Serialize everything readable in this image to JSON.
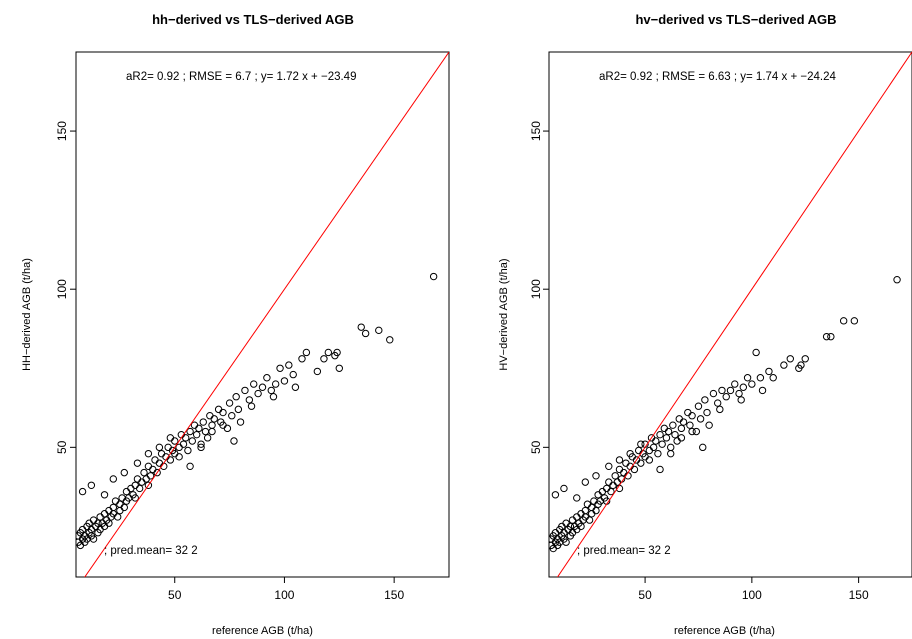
{
  "chart_data": [
    {
      "type": "scatter",
      "title": "hh−derived vs TLS−derived AGB",
      "xlabel": "reference AGB (t/ha)",
      "ylabel": "HH−derived AGB (t/ha)",
      "xlim": [
        5,
        175
      ],
      "ylim": [
        9,
        175
      ],
      "xticks": [
        50,
        100,
        150
      ],
      "yticks": [
        50,
        100,
        150
      ],
      "reference_line": {
        "intercept": 0,
        "slope": 1,
        "color": "#ff0000"
      },
      "point_color": "#000000",
      "stats_text": "aR2= 0.92 ;  RMSE =  6.7 ;  y= 1.72 x + −23.49",
      "pred_text": "pred.mean= 32 2",
      "grid": false,
      "series": [
        {
          "x": [
            6,
            6,
            7,
            7,
            8,
            8,
            9,
            9,
            10,
            10,
            11,
            11,
            12,
            12,
            13,
            13,
            14,
            15,
            15,
            16,
            16,
            17,
            18,
            18,
            19,
            20,
            20,
            21,
            22,
            22,
            23,
            24,
            25,
            25,
            26,
            27,
            28,
            28,
            29,
            30,
            31,
            32,
            32,
            33,
            34,
            35,
            36,
            37,
            38,
            38,
            39,
            40,
            41,
            42,
            43,
            44,
            45,
            46,
            47,
            48,
            49,
            50,
            50,
            52,
            53,
            54,
            55,
            56,
            57,
            58,
            59,
            60,
            61,
            62,
            63,
            64,
            65,
            66,
            67,
            68,
            70,
            71,
            72,
            74,
            75,
            76,
            78,
            79,
            80,
            82,
            84,
            85,
            86,
            88,
            90,
            92,
            94,
            95,
            96,
            98,
            100,
            102,
            104,
            105,
            108,
            110,
            115,
            118,
            120,
            123,
            124,
            125,
            135,
            137,
            143,
            148,
            168,
            8,
            12,
            18,
            22,
            27,
            33,
            38,
            43,
            48,
            52,
            57,
            62,
            67,
            72,
            77
          ],
          "y": [
            20,
            22,
            19,
            23,
            21,
            24,
            20,
            22,
            25,
            21,
            23,
            26,
            22,
            24,
            21,
            27,
            25,
            23,
            26,
            24,
            28,
            26,
            25,
            29,
            27,
            30,
            26,
            28,
            31,
            29,
            33,
            28,
            32,
            30,
            34,
            31,
            33,
            36,
            34,
            37,
            35,
            38,
            34,
            40,
            37,
            39,
            42,
            40,
            38,
            44,
            41,
            43,
            46,
            42,
            45,
            48,
            44,
            47,
            50,
            46,
            49,
            52,
            48,
            50,
            54,
            51,
            53,
            49,
            55,
            52,
            57,
            54,
            56,
            51,
            58,
            55,
            53,
            60,
            57,
            59,
            62,
            58,
            61,
            56,
            64,
            60,
            66,
            62,
            58,
            68,
            65,
            63,
            70,
            67,
            69,
            72,
            68,
            66,
            70,
            75,
            71,
            76,
            73,
            69,
            78,
            80,
            74,
            78,
            80,
            79,
            80,
            75,
            88,
            86,
            87,
            84,
            104,
            36,
            38,
            35,
            40,
            42,
            45,
            48,
            50,
            53,
            47,
            44,
            50,
            55,
            57,
            52
          ]
        }
      ]
    },
    {
      "type": "scatter",
      "title": "hv−derived vs TLS−derived AGB",
      "xlabel": "reference AGB (t/ha)",
      "ylabel": "HV−derived AGB (t/ha)",
      "xlim": [
        5,
        175
      ],
      "ylim": [
        9,
        175
      ],
      "xticks": [
        50,
        100,
        150
      ],
      "yticks": [
        50,
        100,
        150
      ],
      "reference_line": {
        "intercept": 0,
        "slope": 1,
        "color": "#ff0000"
      },
      "point_color": "#000000",
      "stats_text": "aR2= 0.92 ;  RMSE =  6.63 ;  y= 1.74 x + −24.24",
      "pred_text": "pred.mean= 32 2",
      "grid": false,
      "series": [
        {
          "x": [
            6,
            6,
            7,
            7,
            8,
            8,
            9,
            9,
            10,
            10,
            11,
            11,
            12,
            12,
            13,
            13,
            14,
            15,
            15,
            16,
            16,
            17,
            18,
            18,
            19,
            20,
            20,
            21,
            22,
            22,
            23,
            24,
            25,
            25,
            26,
            27,
            28,
            28,
            29,
            30,
            31,
            32,
            32,
            33,
            34,
            35,
            36,
            37,
            38,
            38,
            39,
            40,
            41,
            42,
            43,
            44,
            45,
            46,
            47,
            48,
            49,
            50,
            50,
            52,
            53,
            54,
            55,
            56,
            57,
            58,
            59,
            60,
            61,
            62,
            63,
            64,
            65,
            66,
            67,
            68,
            70,
            71,
            72,
            74,
            75,
            76,
            78,
            79,
            80,
            82,
            84,
            85,
            86,
            88,
            90,
            92,
            94,
            95,
            96,
            98,
            100,
            102,
            104,
            105,
            108,
            110,
            115,
            118,
            122,
            123,
            125,
            135,
            137,
            143,
            148,
            168,
            8,
            12,
            18,
            22,
            27,
            33,
            38,
            43,
            48,
            52,
            57,
            62,
            67,
            72,
            77
          ],
          "y": [
            19,
            21,
            18,
            22,
            20,
            23,
            19,
            21,
            24,
            20,
            22,
            25,
            21,
            23,
            20,
            26,
            24,
            22,
            25,
            23,
            27,
            25,
            24,
            28,
            26,
            29,
            25,
            27,
            30,
            28,
            32,
            27,
            31,
            29,
            33,
            30,
            32,
            35,
            33,
            36,
            34,
            37,
            33,
            39,
            36,
            38,
            41,
            39,
            37,
            43,
            40,
            42,
            45,
            41,
            44,
            47,
            43,
            46,
            49,
            45,
            48,
            51,
            47,
            49,
            53,
            50,
            52,
            48,
            54,
            51,
            56,
            53,
            55,
            50,
            57,
            54,
            52,
            59,
            56,
            58,
            61,
            57,
            60,
            55,
            63,
            59,
            65,
            61,
            57,
            67,
            64,
            62,
            68,
            66,
            68,
            70,
            67,
            65,
            69,
            72,
            70,
            80,
            72,
            68,
            74,
            72,
            76,
            78,
            75,
            76,
            78,
            85,
            85,
            90,
            90,
            103,
            35,
            37,
            34,
            39,
            41,
            44,
            46,
            48,
            51,
            46,
            43,
            48,
            53,
            55,
            50
          ]
        }
      ]
    }
  ]
}
